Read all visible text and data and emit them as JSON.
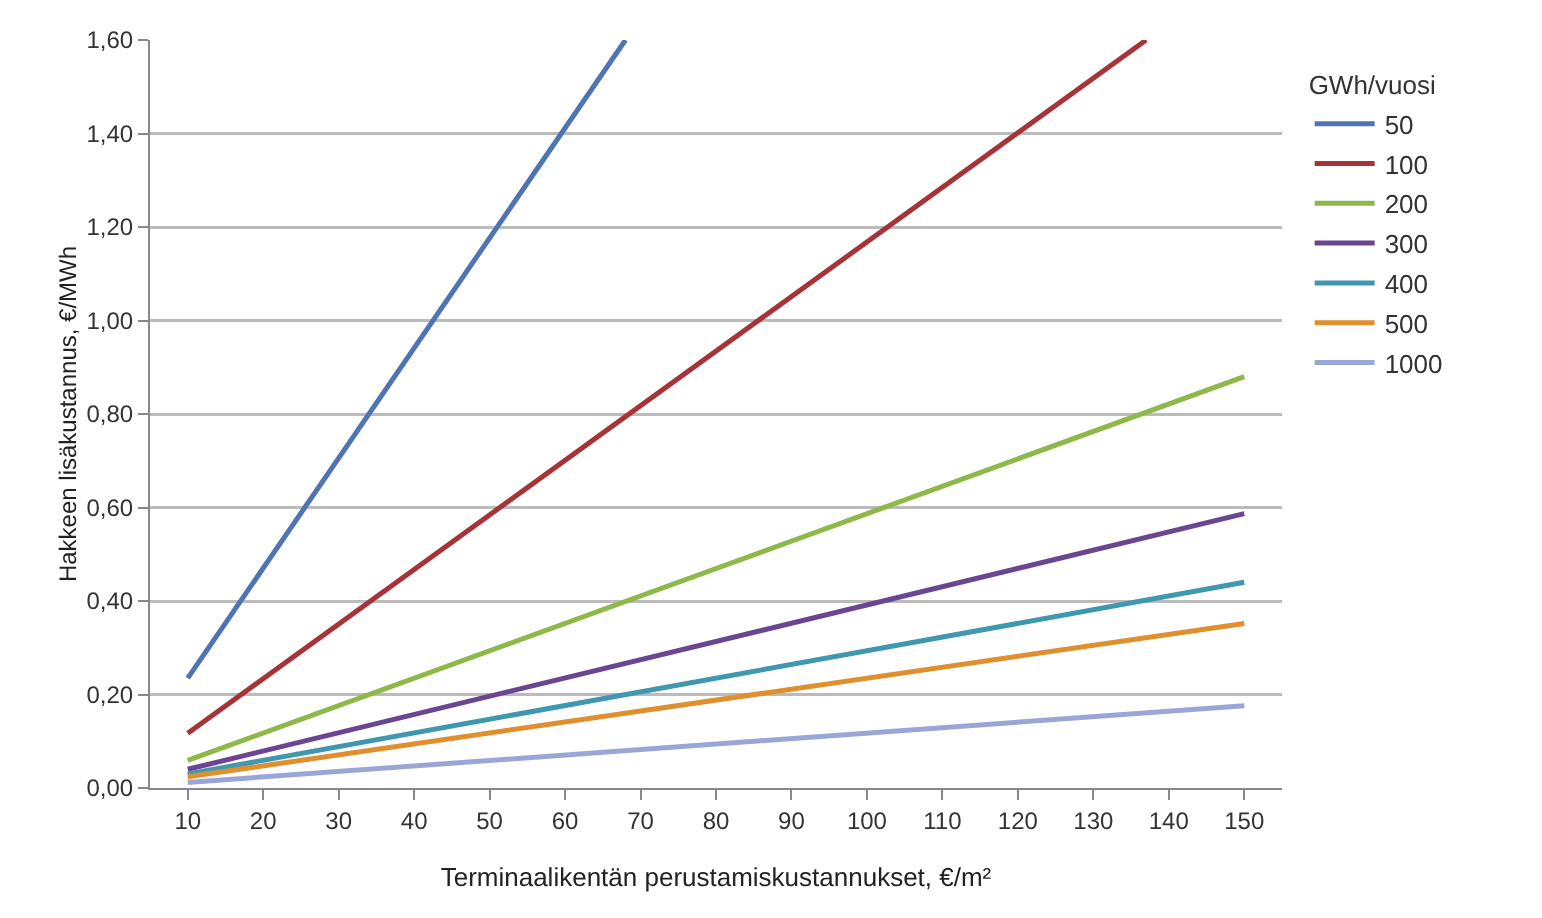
{
  "chart_data": {
    "type": "line",
    "xlabel": "Terminaalikentän perustamiskustannukset, €/m²",
    "ylabel": "Hakkeen lisäkustannus, €/MWh",
    "legend_title": "GWh/vuosi",
    "legend": "right",
    "grid": "y",
    "marker": "none",
    "line_style": "solid",
    "xlim": [
      5,
      155
    ],
    "xticks": [
      10,
      20,
      30,
      40,
      50,
      60,
      70,
      80,
      90,
      100,
      110,
      120,
      130,
      140,
      150
    ],
    "ylim": [
      0,
      1.6
    ],
    "yticks": [
      {
        "value": 0,
        "label": "0,00"
      },
      {
        "value": 0.2,
        "label": "0,20"
      },
      {
        "value": 0.4,
        "label": "0,40"
      },
      {
        "value": 0.6,
        "label": "0,60"
      },
      {
        "value": 0.8,
        "label": "0,80"
      },
      {
        "value": 1,
        "label": "1,00"
      },
      {
        "value": 1.2,
        "label": "1,20"
      },
      {
        "value": 1.4,
        "label": "1,40"
      },
      {
        "value": 1.6,
        "label": "1,60"
      }
    ],
    "series": [
      {
        "name": "50",
        "color": "#4f74b3",
        "x": [
          10,
          68
        ],
        "values": [
          0.235,
          1.6
        ]
      },
      {
        "name": "100",
        "color": "#a63337",
        "x": [
          10,
          137
        ],
        "values": [
          0.117,
          1.6
        ]
      },
      {
        "name": "200",
        "color": "#8fb84a",
        "x": [
          10,
          150
        ],
        "values": [
          0.059,
          0.88
        ]
      },
      {
        "name": "300",
        "color": "#6a4591",
        "x": [
          10,
          150
        ],
        "values": [
          0.04,
          0.587
        ]
      },
      {
        "name": "400",
        "color": "#3f98b0",
        "x": [
          10,
          150
        ],
        "values": [
          0.03,
          0.44
        ]
      },
      {
        "name": "500",
        "color": "#e08f2e",
        "x": [
          10,
          150
        ],
        "values": [
          0.024,
          0.352
        ]
      },
      {
        "name": "1000",
        "color": "#9aa7d6",
        "x": [
          10,
          150
        ],
        "values": [
          0.012,
          0.176
        ]
      }
    ]
  }
}
